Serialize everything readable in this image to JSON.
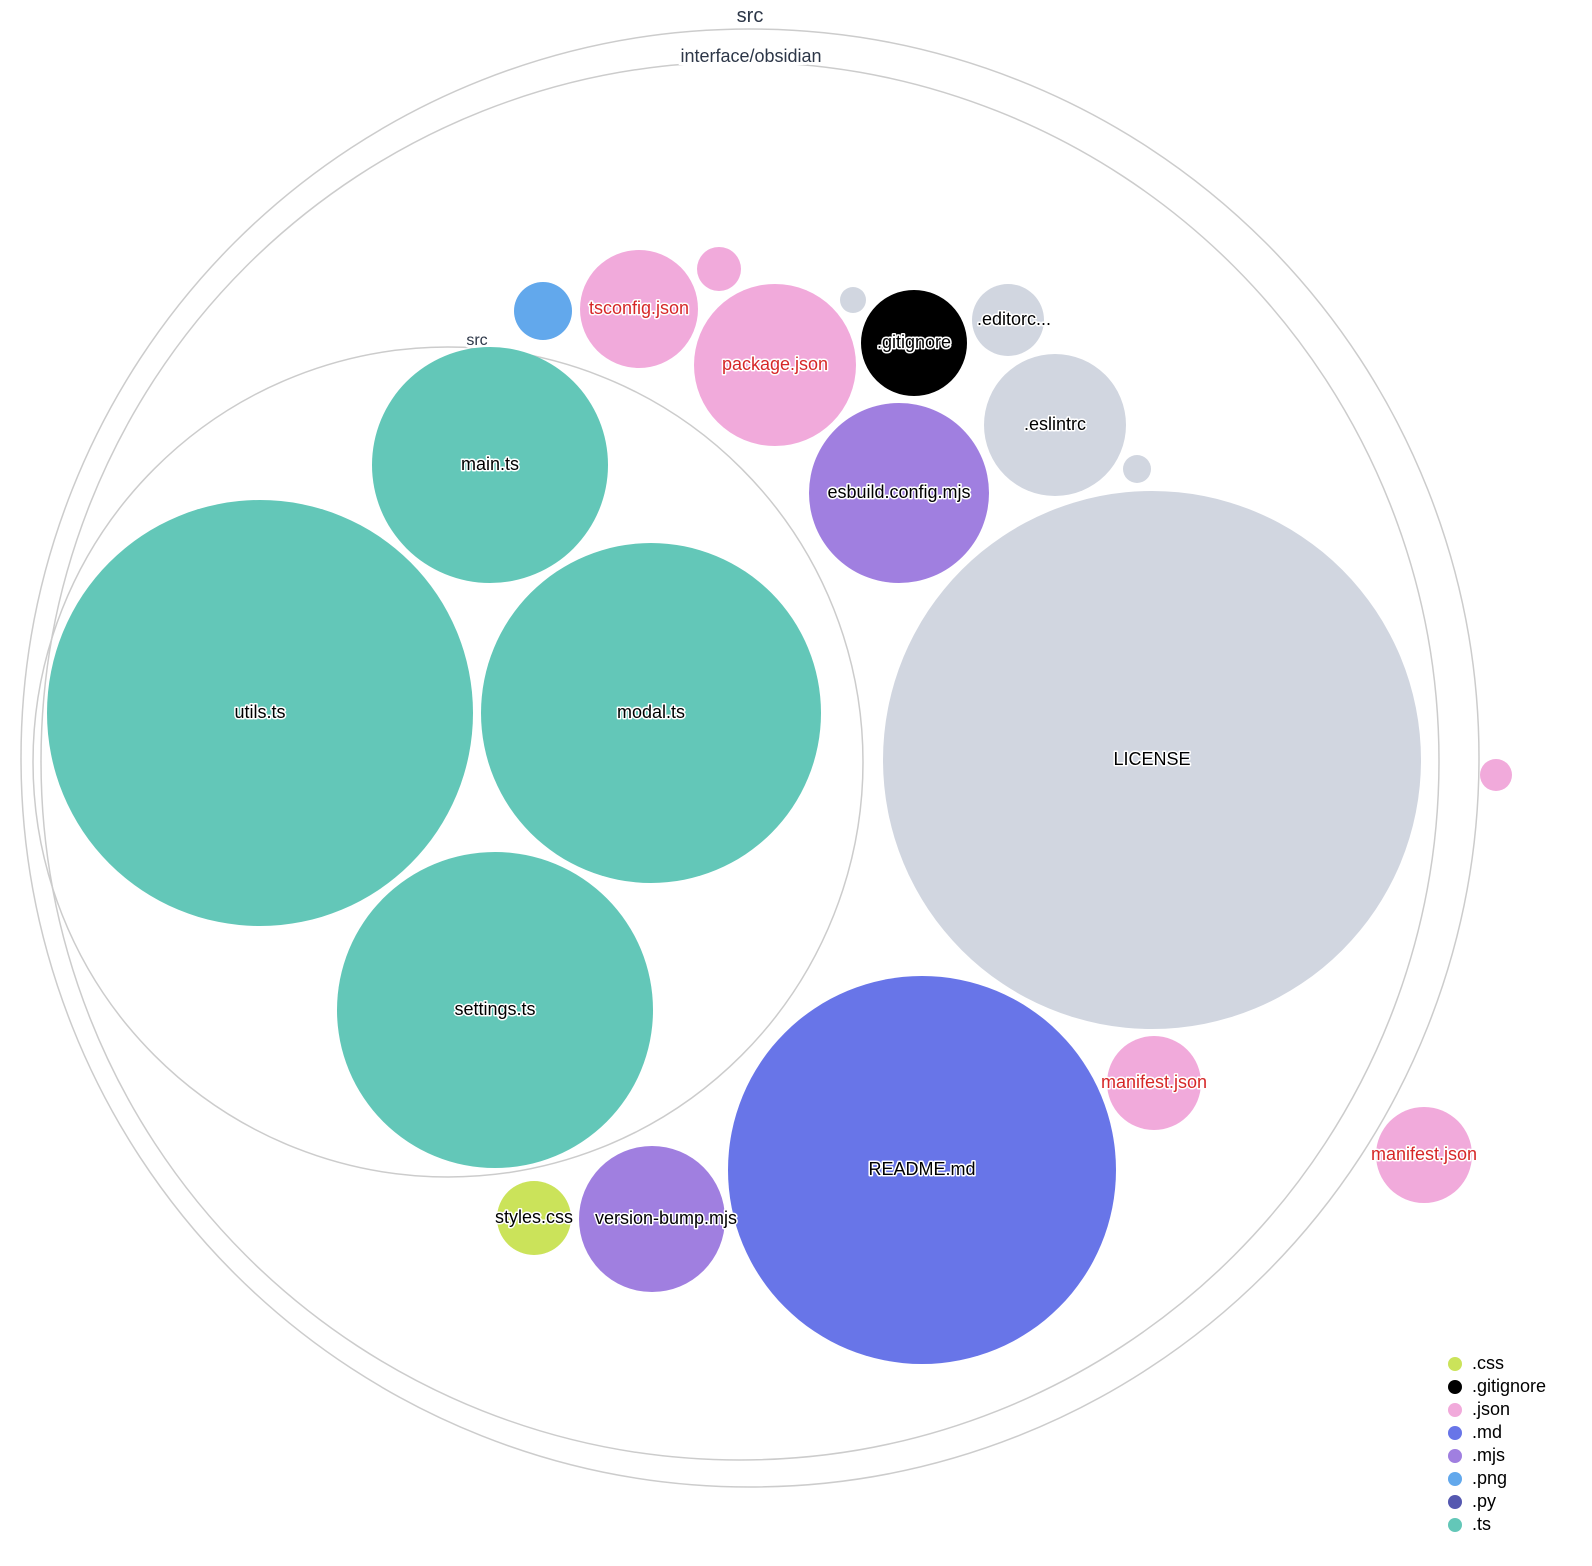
{
  "folders": [
    {
      "label": "src"
    },
    {
      "label": "interface/obsidian"
    },
    {
      "label": "src"
    }
  ],
  "files": [
    {
      "label": "main.ts",
      "ext": ".ts",
      "highlight": false
    },
    {
      "label": "utils.ts",
      "ext": ".ts",
      "highlight": false
    },
    {
      "label": "modal.ts",
      "ext": ".ts",
      "highlight": false
    },
    {
      "label": "settings.ts",
      "ext": ".ts",
      "highlight": false
    },
    {
      "label": "LICENSE",
      "ext": "",
      "highlight": false
    },
    {
      "label": "README.md",
      "ext": ".md",
      "highlight": false
    },
    {
      "label": "esbuild.config.mjs",
      "ext": ".mjs",
      "highlight": false
    },
    {
      "label": ".eslintrc",
      "ext": "",
      "highlight": false
    },
    {
      "label": ".gitignore",
      "ext": ".gitignore",
      "highlight": false
    },
    {
      "label": ".editorc...",
      "ext": "",
      "highlight": false
    },
    {
      "label": "package.json",
      "ext": ".json",
      "highlight": true
    },
    {
      "label": "tsconfig.json",
      "ext": ".json",
      "highlight": true
    },
    {
      "label": "",
      "ext": ".json",
      "highlight": false
    },
    {
      "label": "",
      "ext": ".png",
      "highlight": false
    },
    {
      "label": "",
      "ext": "",
      "highlight": false
    },
    {
      "label": "",
      "ext": "",
      "highlight": false
    },
    {
      "label": "manifest.json",
      "ext": ".json",
      "highlight": true
    },
    {
      "label": "manifest.json",
      "ext": ".json",
      "highlight": true
    },
    {
      "label": "",
      "ext": ".json",
      "highlight": false
    },
    {
      "label": "version-bump.mjs",
      "ext": ".mjs",
      "highlight": false
    },
    {
      "label": "styles.css",
      "ext": ".css",
      "highlight": false
    }
  ],
  "colors": {
    ".css": "#cbe35a",
    ".gitignore": "#000000",
    ".json": "#f1aadb",
    ".md": "#6875e8",
    ".mjs": "#a07fe0",
    ".png": "#62a8ec",
    ".py": "#5558b0",
    ".ts": "#63c7b8",
    "default": "#d1d6e0",
    "highlight_text": "#d62728",
    "text": "#000000"
  },
  "legend": [
    {
      "label": ".css",
      "color": "#cbe35a"
    },
    {
      "label": ".gitignore",
      "color": "#000000"
    },
    {
      "label": ".json",
      "color": "#f1aadb"
    },
    {
      "label": ".md",
      "color": "#6875e8"
    },
    {
      "label": ".mjs",
      "color": "#a07fe0"
    },
    {
      "label": ".png",
      "color": "#62a8ec"
    },
    {
      "label": ".py",
      "color": "#5558b0"
    },
    {
      "label": ".ts",
      "color": "#63c7b8"
    }
  ]
}
